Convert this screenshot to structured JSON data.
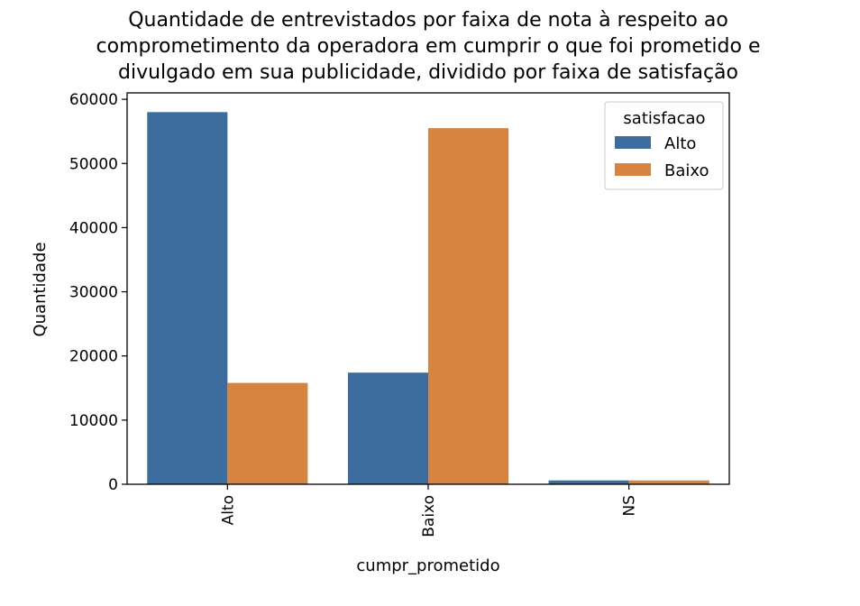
{
  "chart_data": {
    "type": "bar",
    "title_lines": [
      "Quantidade de entrevistados por faixa de nota à respeito ao",
      "comprometimento da operadora em cumprir o que foi prometido e",
      "divulgado em sua publicidade, dividido por faixa de satisfação"
    ],
    "xlabel": "cumpr_prometido",
    "ylabel": "Quantidade",
    "categories": [
      "Alto",
      "Baixo",
      "NS"
    ],
    "series": [
      {
        "name": "Alto",
        "color": "#3d6d9e",
        "values": [
          58000,
          17400,
          600
        ]
      },
      {
        "name": "Baixo",
        "color": "#d6843f",
        "values": [
          15800,
          55500,
          600
        ]
      }
    ],
    "ylim": [
      0,
      61000
    ],
    "yticks": [
      0,
      10000,
      20000,
      30000,
      40000,
      50000,
      60000
    ],
    "grid": false,
    "legend": {
      "title": "satisfacao",
      "placement": "top-right"
    }
  }
}
